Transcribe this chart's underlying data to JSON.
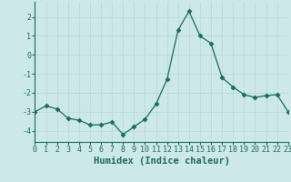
{
  "x": [
    0,
    1,
    2,
    3,
    4,
    5,
    6,
    7,
    8,
    9,
    10,
    11,
    12,
    13,
    14,
    15,
    16,
    17,
    18,
    19,
    20,
    21,
    22,
    23
  ],
  "y": [
    -3.0,
    -2.7,
    -2.85,
    -3.35,
    -3.45,
    -3.7,
    -3.7,
    -3.55,
    -4.2,
    -3.8,
    -3.4,
    -2.6,
    -1.3,
    1.3,
    2.3,
    1.0,
    0.6,
    -1.2,
    -1.7,
    -2.1,
    -2.25,
    -2.15,
    -2.1,
    -3.0
  ],
  "xlabel": "Humidex (Indice chaleur)",
  "ylim": [
    -4.6,
    2.8
  ],
  "xlim": [
    0,
    23
  ],
  "yticks": [
    -4,
    -3,
    -2,
    -1,
    0,
    1,
    2
  ],
  "xticks": [
    0,
    1,
    2,
    3,
    4,
    5,
    6,
    7,
    8,
    9,
    10,
    11,
    12,
    13,
    14,
    15,
    16,
    17,
    18,
    19,
    20,
    21,
    22,
    23
  ],
  "line_color": "#1a6b5a",
  "marker": "D",
  "marker_size": 2.5,
  "bg_color": "#cce8e8",
  "grid_color": "#b8d8d8",
  "tick_label_fontsize": 6.0,
  "xlabel_fontsize": 7.5,
  "xlabel_color": "#1a6b5a",
  "ytick_label_color": "#1a6b5a",
  "xtick_label_color": "#1a6b5a"
}
